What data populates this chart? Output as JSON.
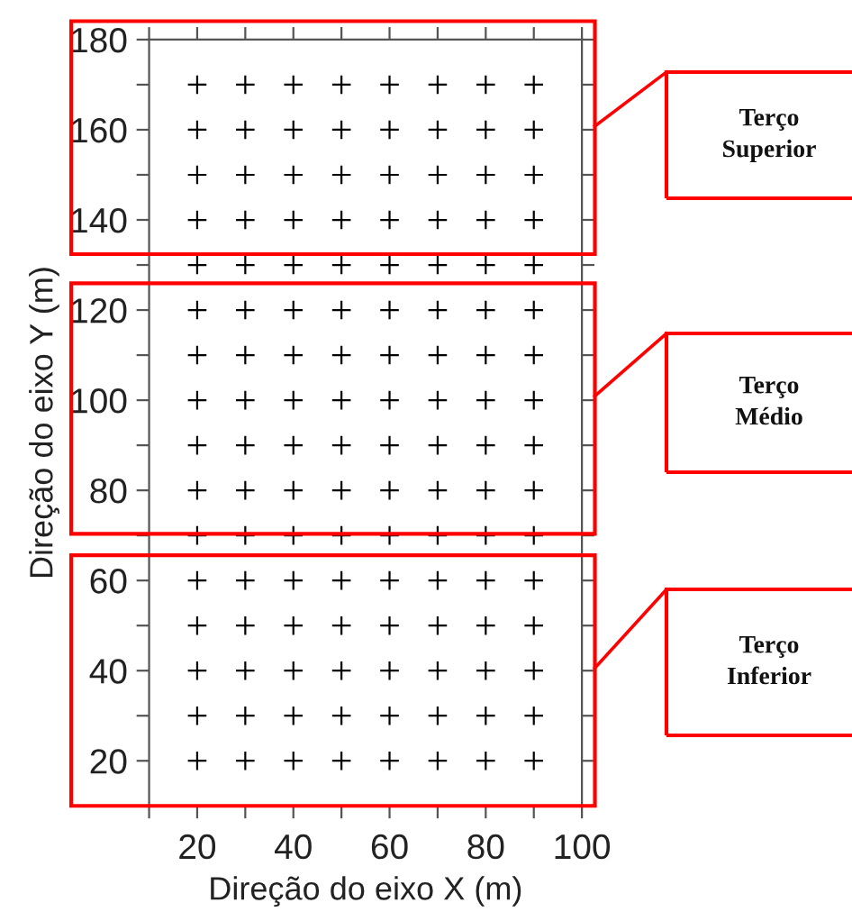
{
  "chart_data": {
    "type": "scatter",
    "xlabel": "Direção do eixo X (m)",
    "ylabel": "Direção do eixo Y (m)",
    "x": [
      20,
      30,
      40,
      50,
      60,
      70,
      80,
      90,
      20,
      30,
      40,
      50,
      60,
      70,
      80,
      90,
      20,
      30,
      40,
      50,
      60,
      70,
      80,
      90,
      20,
      30,
      40,
      50,
      60,
      70,
      80,
      90,
      20,
      30,
      40,
      50,
      60,
      70,
      80,
      90,
      20,
      30,
      40,
      50,
      60,
      70,
      80,
      90,
      20,
      30,
      40,
      50,
      60,
      70,
      80,
      90,
      20,
      30,
      40,
      50,
      60,
      70,
      80,
      90,
      20,
      30,
      40,
      50,
      60,
      70,
      80,
      90,
      20,
      30,
      40,
      50,
      60,
      70,
      80,
      90,
      20,
      30,
      40,
      50,
      60,
      70,
      80,
      90,
      20,
      30,
      40,
      50,
      60,
      70,
      80,
      90,
      20,
      30,
      40,
      50,
      60,
      70,
      80,
      90,
      20,
      30,
      40,
      50,
      60,
      70,
      80,
      90,
      20,
      30,
      40,
      50,
      60,
      70,
      80,
      90,
      20,
      30,
      40,
      50,
      60,
      70,
      80,
      90
    ],
    "values": [
      20,
      20,
      20,
      20,
      20,
      20,
      20,
      20,
      30,
      30,
      30,
      30,
      30,
      30,
      30,
      30,
      40,
      40,
      40,
      40,
      40,
      40,
      40,
      40,
      50,
      50,
      50,
      50,
      50,
      50,
      50,
      50,
      60,
      60,
      60,
      60,
      60,
      60,
      60,
      60,
      70,
      70,
      70,
      70,
      70,
      70,
      70,
      70,
      80,
      80,
      80,
      80,
      80,
      80,
      80,
      80,
      90,
      90,
      90,
      90,
      90,
      90,
      90,
      90,
      100,
      100,
      100,
      100,
      100,
      100,
      100,
      100,
      110,
      110,
      110,
      110,
      110,
      110,
      110,
      110,
      120,
      120,
      120,
      120,
      120,
      120,
      120,
      120,
      130,
      130,
      130,
      130,
      130,
      130,
      130,
      130,
      140,
      140,
      140,
      140,
      140,
      140,
      140,
      140,
      150,
      150,
      150,
      150,
      150,
      150,
      150,
      150,
      160,
      160,
      160,
      160,
      160,
      160,
      160,
      160,
      170,
      170,
      170,
      170,
      170,
      170,
      170,
      170
    ],
    "color": "#000000",
    "marker": "cross",
    "xlim": [
      10,
      100
    ],
    "ylim": [
      10,
      180
    ],
    "xticks": [
      {
        "value": 10,
        "label": null
      },
      20,
      {
        "value": 30,
        "label": null
      },
      40,
      {
        "value": 50,
        "label": null
      },
      60,
      {
        "value": 70,
        "label": null
      },
      80,
      {
        "value": 90,
        "label": null
      },
      100
    ],
    "yticks": [
      {
        "value": 10,
        "label": null
      },
      20,
      {
        "value": 30,
        "label": null
      },
      40,
      {
        "value": 50,
        "label": null
      },
      60,
      {
        "value": 70,
        "label": null
      },
      80,
      {
        "value": 90,
        "label": null
      },
      100,
      {
        "value": 110,
        "label": null
      },
      120,
      {
        "value": 130,
        "label": null
      },
      140,
      {
        "value": 150,
        "label": null
      },
      160,
      {
        "value": 170,
        "label": null
      },
      180
    ],
    "grid": false,
    "legend": false,
    "annotations": [
      "Terço Superior",
      "Terço Médio",
      "Terço Inferior"
    ]
  }
}
